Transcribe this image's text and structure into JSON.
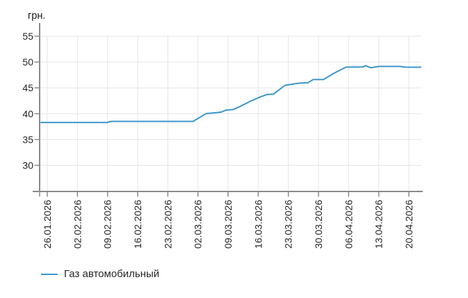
{
  "page": {
    "background": "#ffffff"
  },
  "chart_data": {
    "type": "line",
    "title": "",
    "y_axis": {
      "unit_label": "грн.",
      "ticks": [
        55,
        50,
        45,
        40,
        35,
        30
      ],
      "range_shown": [
        25,
        57.5
      ],
      "grid": true
    },
    "x_axis": {
      "tick_labels": [
        "26.01.2026",
        "02.02.2026",
        "09.02.2026",
        "16.02.2026",
        "23.02.2026",
        "02.03.2026",
        "09.03.2026",
        "16.03.2026",
        "23.03.2026",
        "30.03.2026",
        "06.04.2026",
        "13.04.2026",
        "20.04.2026"
      ],
      "grid": true,
      "label_rotation_deg": -90
    },
    "series": [
      {
        "name": "Газ автомобильный",
        "color": "#3b96cd",
        "start_date_approx": "25.01.2026",
        "end_date_approx": "23.04.2026",
        "points_day_value": [
          [
            0,
            38.3
          ],
          [
            15.4,
            38.3
          ],
          [
            16.3,
            38.5
          ],
          [
            35.3,
            38.5
          ],
          [
            38.3,
            40.0
          ],
          [
            41.8,
            40.3
          ],
          [
            43.0,
            40.7
          ],
          [
            44.6,
            40.8
          ],
          [
            46.5,
            41.5
          ],
          [
            48.6,
            42.4
          ],
          [
            51.1,
            43.3
          ],
          [
            52.5,
            43.7
          ],
          [
            54.0,
            43.8
          ],
          [
            56.7,
            45.5
          ],
          [
            59.9,
            45.9
          ],
          [
            62.0,
            46.0
          ],
          [
            63.2,
            46.6
          ],
          [
            65.6,
            46.6
          ],
          [
            68.0,
            47.8
          ],
          [
            70.8,
            49.0
          ],
          [
            74.8,
            49.05
          ],
          [
            75.4,
            49.3
          ],
          [
            76.6,
            48.9
          ],
          [
            78.5,
            49.15
          ],
          [
            83.4,
            49.15
          ],
          [
            84.7,
            49.0
          ],
          [
            88.2,
            49.0
          ]
        ],
        "values_at_ticks": [
          38.3,
          38.3,
          38.5,
          38.5,
          38.5,
          39.1,
          40.8,
          43.1,
          45.6,
          46.6,
          49.0,
          49.2,
          49.0
        ]
      }
    ],
    "legend_position": "bottom-left",
    "colors": {
      "axis": "#8a8a8a",
      "grid": "#e6e6e6",
      "tick_text": "#262626",
      "unit_text": "#1a1a1a"
    }
  },
  "legend": {
    "items": [
      {
        "label": "Газ автомобильный",
        "color": "#3b96cd"
      }
    ]
  }
}
